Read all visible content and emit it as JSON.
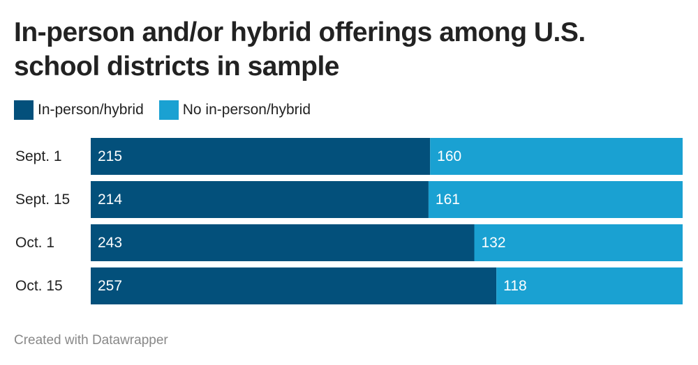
{
  "chart_data": {
    "type": "stacked-bar-horizontal",
    "title": "In-person and/or hybrid offerings among U.S. school districts in sample",
    "categories": [
      "Sept. 1",
      "Sept. 15",
      "Oct. 1",
      "Oct. 15"
    ],
    "series": [
      {
        "name": "In-person/hybrid",
        "color": "#03507b",
        "values": [
          215,
          214,
          243,
          257
        ]
      },
      {
        "name": "No in-person/hybrid",
        "color": "#1aa1d2",
        "values": [
          160,
          161,
          132,
          118
        ]
      }
    ],
    "xlim": [
      0,
      375
    ],
    "legend": "top",
    "footer": "Created with Datawrapper"
  }
}
